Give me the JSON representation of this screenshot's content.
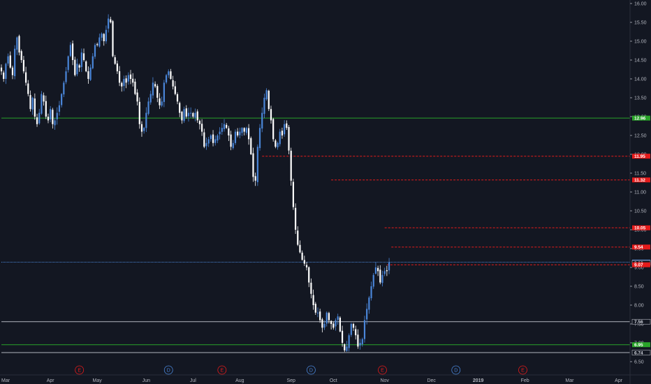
{
  "chart_data": {
    "type": "candlestick",
    "colors": {
      "background": "#131722",
      "up": "#4a86d9",
      "down": "#ffffff",
      "support": "#29a329",
      "resistance": "#e51b1b",
      "level_gray": "#b2b5be",
      "current": "#4a86d9"
    },
    "y_ticks": [
      "16.00",
      "15.50",
      "15.00",
      "14.50",
      "14.00",
      "13.50",
      "13.00",
      "12.50",
      "12.00",
      "11.50",
      "11.00",
      "10.50",
      "10.00",
      "9.50",
      "9.00",
      "8.50",
      "8.00",
      "7.50",
      "7.00",
      "6.50"
    ],
    "x_ticks": [
      {
        "label": "Mar",
        "t": 0
      },
      {
        "label": "Apr",
        "t": 22
      },
      {
        "label": "May",
        "t": 43
      },
      {
        "label": "Jun",
        "t": 65
      },
      {
        "label": "Jul",
        "t": 86
      },
      {
        "label": "Aug",
        "t": 107
      },
      {
        "label": "Sep",
        "t": 130
      },
      {
        "label": "Oct",
        "t": 149
      },
      {
        "label": "Nov",
        "t": 172
      },
      {
        "label": "Dec",
        "t": 193
      },
      {
        "label": "2019",
        "t": 214
      },
      {
        "label": "Feb",
        "t": 235
      },
      {
        "label": "Mar",
        "t": 255
      },
      {
        "label": "Apr",
        "t": 277
      }
    ],
    "events": [
      {
        "label": "E",
        "t": 35,
        "kind": "earnings"
      },
      {
        "label": "D",
        "t": 75,
        "kind": "dividend"
      },
      {
        "label": "E",
        "t": 99,
        "kind": "earnings"
      },
      {
        "label": "D",
        "t": 139,
        "kind": "dividend"
      },
      {
        "label": "E",
        "t": 171,
        "kind": "earnings"
      },
      {
        "label": "D",
        "t": 204,
        "kind": "dividend"
      },
      {
        "label": "E",
        "t": 234,
        "kind": "earnings"
      }
    ],
    "price_levels": [
      {
        "price": 12.96,
        "label": "12.96",
        "color": "#29a329",
        "style": "solid",
        "from_t": 0
      },
      {
        "price": 11.95,
        "label": "11.95",
        "color": "#e51b1b",
        "style": "dashed",
        "from_t": 117
      },
      {
        "price": 11.32,
        "label": "11.32",
        "color": "#e51b1b",
        "style": "dashed",
        "from_t": 148
      },
      {
        "price": 10.05,
        "label": "10.05",
        "color": "#e51b1b",
        "style": "dashed",
        "from_t": 172
      },
      {
        "price": 9.54,
        "label": "9.54",
        "color": "#e51b1b",
        "style": "dashed",
        "from_t": 175
      },
      {
        "price": 9.14,
        "label": "9.14",
        "color": "#4a86d9",
        "style": "dotted",
        "from_t": 0
      },
      {
        "price": 9.12,
        "label": "9.12",
        "color": "#b2b5be",
        "style": "none",
        "from_t": 0
      },
      {
        "price": 9.07,
        "label": "9.07",
        "color": "#e51b1b",
        "style": "dashed",
        "from_t": 173
      },
      {
        "price": 7.56,
        "label": "7.56",
        "color": "#b2b5be",
        "style": "solid",
        "from_t": 0
      },
      {
        "price": 6.95,
        "label": "6.95",
        "color": "#29a329",
        "style": "solid",
        "from_t": 0
      },
      {
        "price": 6.74,
        "label": "6.74",
        "color": "#b2b5be",
        "style": "solid",
        "from_t": 0
      }
    ],
    "closes": [
      14.2,
      14.0,
      14.4,
      14.6,
      14.3,
      14.1,
      14.8,
      15.1,
      14.7,
      14.5,
      14.2,
      13.9,
      13.6,
      13.2,
      13.5,
      13.0,
      12.8,
      13.1,
      13.6,
      13.4,
      13.0,
      12.9,
      13.2,
      12.8,
      12.9,
      13.1,
      13.3,
      13.6,
      13.9,
      14.2,
      14.6,
      14.9,
      14.5,
      14.1,
      14.4,
      14.3,
      14.7,
      14.5,
      14.2,
      14.0,
      14.3,
      14.6,
      14.9,
      14.9,
      15.1,
      15.2,
      15.0,
      15.3,
      15.6,
      15.5,
      14.6,
      14.4,
      14.2,
      13.9,
      13.8,
      14.0,
      13.9,
      14.1,
      14.0,
      13.9,
      13.6,
      13.4,
      12.8,
      12.6,
      12.7,
      13.1,
      13.4,
      13.6,
      13.9,
      13.8,
      13.5,
      13.3,
      13.4,
      13.9,
      14.1,
      14.2,
      14.0,
      13.8,
      13.6,
      13.4,
      13.1,
      12.9,
      13.2,
      13.0,
      13.1,
      13.1,
      13.0,
      13.1,
      12.9,
      12.8,
      12.6,
      12.2,
      12.3,
      12.4,
      12.5,
      12.3,
      12.4,
      12.5,
      12.6,
      12.7,
      12.8,
      12.7,
      12.5,
      12.2,
      12.3,
      12.6,
      12.5,
      12.6,
      12.7,
      12.6,
      12.7,
      12.4,
      12.0,
      11.4,
      11.3,
      12.2,
      12.7,
      13.1,
      13.5,
      13.7,
      13.2,
      12.9,
      12.4,
      12.2,
      12.3,
      12.6,
      12.5,
      12.8,
      12.7,
      12.1,
      11.3,
      10.6,
      10.0,
      9.6,
      9.4,
      9.2,
      9.1,
      9.0,
      8.6,
      8.3,
      8.0,
      7.8,
      7.8,
      7.6,
      7.4,
      7.5,
      7.8,
      7.6,
      7.5,
      7.4,
      7.6,
      7.7,
      7.3,
      7.0,
      6.8,
      6.9,
      7.2,
      7.5,
      7.4,
      7.2,
      6.9,
      7.0,
      7.1,
      7.6,
      7.9,
      8.2,
      8.5,
      8.8,
      9.0,
      8.9,
      8.6,
      8.8,
      8.9,
      8.9,
      9.14
    ]
  }
}
